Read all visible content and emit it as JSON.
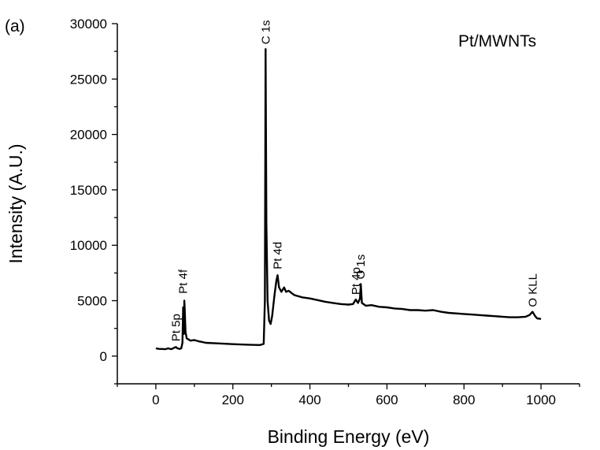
{
  "chart_data": {
    "type": "line",
    "panel_label": "(a)",
    "xlabel": "Binding Energy (eV)",
    "ylabel": "Intensity (A.U.)",
    "xlim": [
      -100,
      1100
    ],
    "ylim": [
      -2500,
      30000
    ],
    "xticks": [
      0,
      200,
      400,
      600,
      800,
      1000
    ],
    "yticks": [
      0,
      5000,
      10000,
      15000,
      20000,
      25000,
      30000
    ],
    "xtick_labels": [
      "0",
      "200",
      "400",
      "600",
      "800",
      "1000"
    ],
    "ytick_labels": [
      "0",
      "5000",
      "10000",
      "15000",
      "20000",
      "25000",
      "30000"
    ],
    "legend": {
      "text": "Pt/MWNTs",
      "placement": "top-right"
    },
    "grid": false,
    "line_color": "#000000",
    "annotations": [
      {
        "text": "Pt 5p",
        "x": 52,
        "y": 900
      },
      {
        "text": "Pt 4f",
        "x": 71,
        "y": 5200
      },
      {
        "text": "C 1s",
        "x": 285,
        "y": 27700
      },
      {
        "text": "Pt 4d",
        "x": 316,
        "y": 7400
      },
      {
        "text": "Pt 4p",
        "x": 519,
        "y": 5100
      },
      {
        "text": "O 1s",
        "x": 532,
        "y": 6500
      },
      {
        "text": "O KLL",
        "x": 978,
        "y": 4000
      }
    ],
    "series": [
      {
        "values": [
          [
            0,
            700
          ],
          [
            8,
            650
          ],
          [
            16,
            640
          ],
          [
            24,
            620
          ],
          [
            32,
            700
          ],
          [
            40,
            620
          ],
          [
            48,
            760
          ],
          [
            52,
            820
          ],
          [
            56,
            700
          ],
          [
            62,
            650
          ],
          [
            66,
            700
          ],
          [
            69,
            1200
          ],
          [
            71,
            4400
          ],
          [
            72,
            3000
          ],
          [
            73,
            2000
          ],
          [
            74,
            5000
          ],
          [
            75,
            4200
          ],
          [
            77,
            2200
          ],
          [
            80,
            1600
          ],
          [
            90,
            1400
          ],
          [
            100,
            1450
          ],
          [
            110,
            1350
          ],
          [
            130,
            1200
          ],
          [
            160,
            1150
          ],
          [
            200,
            1080
          ],
          [
            240,
            1030
          ],
          [
            270,
            1000
          ],
          [
            280,
            1100
          ],
          [
            283,
            5000
          ],
          [
            285,
            27700
          ],
          [
            287,
            12000
          ],
          [
            290,
            5000
          ],
          [
            294,
            3200
          ],
          [
            298,
            2900
          ],
          [
            302,
            3600
          ],
          [
            308,
            5500
          ],
          [
            313,
            6800
          ],
          [
            316,
            7300
          ],
          [
            320,
            6200
          ],
          [
            326,
            5800
          ],
          [
            333,
            6200
          ],
          [
            338,
            5800
          ],
          [
            345,
            5900
          ],
          [
            352,
            5700
          ],
          [
            360,
            5500
          ],
          [
            380,
            5300
          ],
          [
            400,
            5200
          ],
          [
            420,
            5050
          ],
          [
            440,
            4900
          ],
          [
            460,
            4800
          ],
          [
            480,
            4700
          ],
          [
            500,
            4650
          ],
          [
            512,
            4700
          ],
          [
            519,
            5100
          ],
          [
            525,
            4800
          ],
          [
            530,
            5200
          ],
          [
            532,
            6500
          ],
          [
            535,
            4800
          ],
          [
            545,
            4550
          ],
          [
            560,
            4600
          ],
          [
            580,
            4450
          ],
          [
            600,
            4400
          ],
          [
            620,
            4300
          ],
          [
            640,
            4250
          ],
          [
            660,
            4150
          ],
          [
            680,
            4150
          ],
          [
            700,
            4100
          ],
          [
            720,
            4150
          ],
          [
            740,
            4000
          ],
          [
            760,
            3900
          ],
          [
            780,
            3850
          ],
          [
            800,
            3800
          ],
          [
            820,
            3750
          ],
          [
            840,
            3700
          ],
          [
            860,
            3650
          ],
          [
            880,
            3600
          ],
          [
            900,
            3550
          ],
          [
            920,
            3500
          ],
          [
            940,
            3500
          ],
          [
            960,
            3550
          ],
          [
            970,
            3700
          ],
          [
            978,
            4000
          ],
          [
            985,
            3600
          ],
          [
            990,
            3400
          ],
          [
            1000,
            3350
          ]
        ]
      }
    ]
  }
}
